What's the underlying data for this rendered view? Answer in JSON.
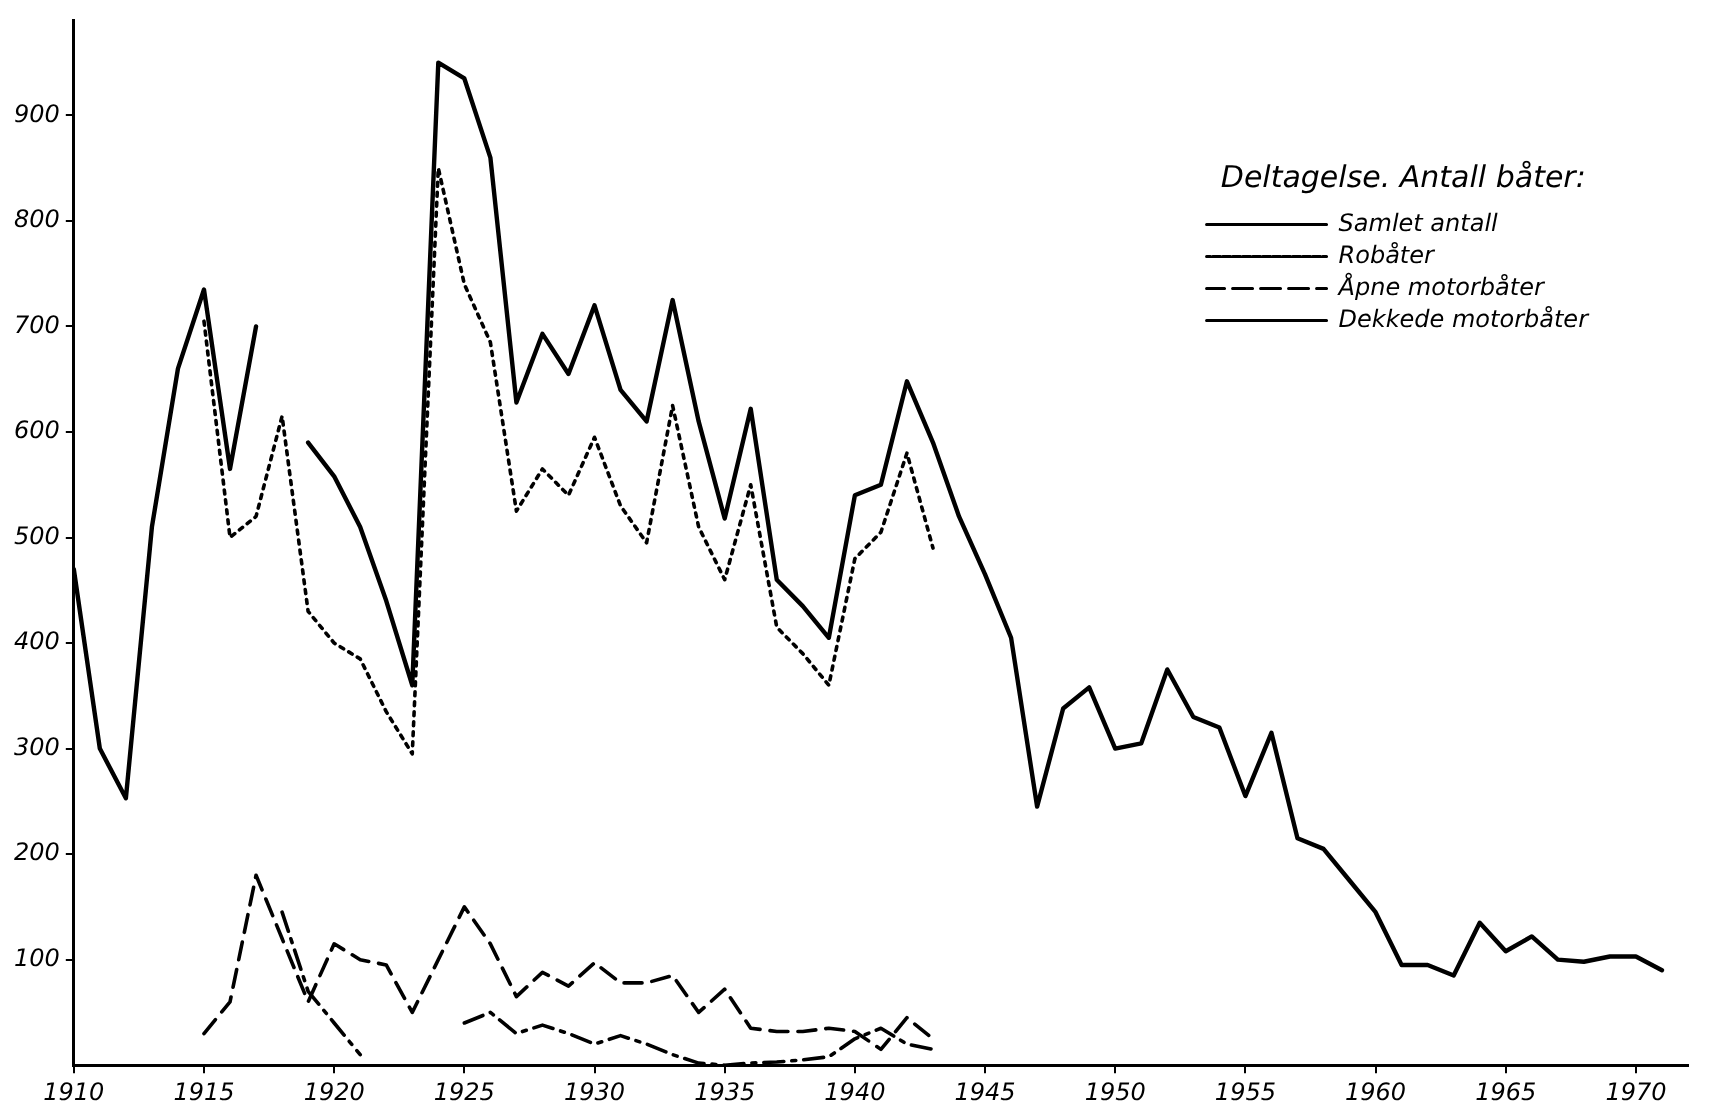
{
  "chart_data": {
    "type": "line",
    "legend_title": "Deltagelse. Antall båter:",
    "legend": "top right",
    "grid": false,
    "marker": "none",
    "x": [
      1910,
      1911,
      1912,
      1913,
      1914,
      1915,
      1916,
      1917,
      1918,
      1919,
      1920,
      1921,
      1922,
      1923,
      1924,
      1925,
      1926,
      1927,
      1928,
      1929,
      1930,
      1931,
      1932,
      1933,
      1934,
      1935,
      1936,
      1937,
      1938,
      1939,
      1940,
      1941,
      1942,
      1943,
      1944,
      1945,
      1946,
      1947,
      1948,
      1949,
      1950,
      1951,
      1952,
      1953,
      1954,
      1955,
      1956,
      1957,
      1958,
      1959,
      1960,
      1961,
      1962,
      1963,
      1964,
      1965,
      1966,
      1967,
      1968,
      1969,
      1970,
      1971
    ],
    "xlim": [
      1910,
      1972
    ],
    "xticks": [
      1910,
      1915,
      1920,
      1925,
      1930,
      1935,
      1940,
      1945,
      1950,
      1955,
      1960,
      1965,
      1970
    ],
    "ylim": [
      0,
      990
    ],
    "yticks": [
      100,
      200,
      300,
      400,
      500,
      600,
      700,
      800,
      900
    ],
    "series": [
      {
        "name": "Samlet antall",
        "color": "#000000",
        "line_style": "solid",
        "values": [
          470,
          300,
          253,
          510,
          660,
          735,
          565,
          700,
          null,
          590,
          558,
          510,
          440,
          360,
          950,
          935,
          860,
          628,
          693,
          655,
          720,
          640,
          610,
          725,
          610,
          518,
          622,
          460,
          435,
          405,
          540,
          550,
          648,
          590,
          520,
          465,
          405,
          245,
          338,
          358,
          300,
          305,
          375,
          330,
          320,
          255,
          315,
          215,
          205,
          175,
          145,
          95,
          95,
          85,
          135,
          108,
          122,
          100,
          98,
          103,
          103,
          90
        ]
      },
      {
        "name": "Robåter",
        "color": "#000000",
        "line_style": "dotted",
        "values": [
          null,
          null,
          null,
          null,
          null,
          705,
          500,
          520,
          615,
          430,
          400,
          385,
          335,
          295,
          850,
          740,
          685,
          525,
          565,
          540,
          595,
          530,
          495,
          625,
          510,
          460,
          550,
          415,
          390,
          360,
          480,
          505,
          580,
          490,
          null,
          null,
          null,
          null,
          null,
          null,
          null,
          null,
          null,
          null,
          null,
          null,
          null,
          null,
          null,
          null,
          null,
          null,
          null,
          null,
          null,
          null,
          null,
          null,
          null,
          null,
          null,
          null
        ]
      },
      {
        "name": "Åpne motorbåter",
        "color": "#000000",
        "line_style": "dashed",
        "values": [
          null,
          null,
          null,
          null,
          null,
          30,
          60,
          180,
          120,
          60,
          115,
          100,
          95,
          50,
          100,
          150,
          115,
          65,
          88,
          75,
          97,
          78,
          78,
          85,
          50,
          72,
          35,
          32,
          32,
          35,
          32,
          15,
          45,
          25,
          null,
          null,
          null,
          null,
          null,
          null,
          null,
          null,
          null,
          null,
          null,
          null,
          null,
          null,
          null,
          null,
          null,
          null,
          null,
          null,
          null,
          null,
          null,
          null,
          null,
          null,
          null,
          null
        ]
      },
      {
        "name": "Dekkede motorbåter",
        "color": "#000000",
        "line_style": "dashdot",
        "values": [
          null,
          null,
          null,
          null,
          null,
          null,
          null,
          null,
          145,
          70,
          40,
          10,
          null,
          null,
          null,
          40,
          50,
          30,
          38,
          30,
          20,
          28,
          20,
          10,
          2,
          0,
          2,
          3,
          5,
          8,
          25,
          35,
          20,
          15,
          null,
          null,
          null,
          null,
          null,
          null,
          null,
          null,
          null,
          null,
          null,
          null,
          null,
          null,
          null,
          null,
          null,
          null,
          null,
          null,
          null,
          null,
          null,
          null,
          null,
          null,
          null,
          null
        ]
      }
    ]
  }
}
